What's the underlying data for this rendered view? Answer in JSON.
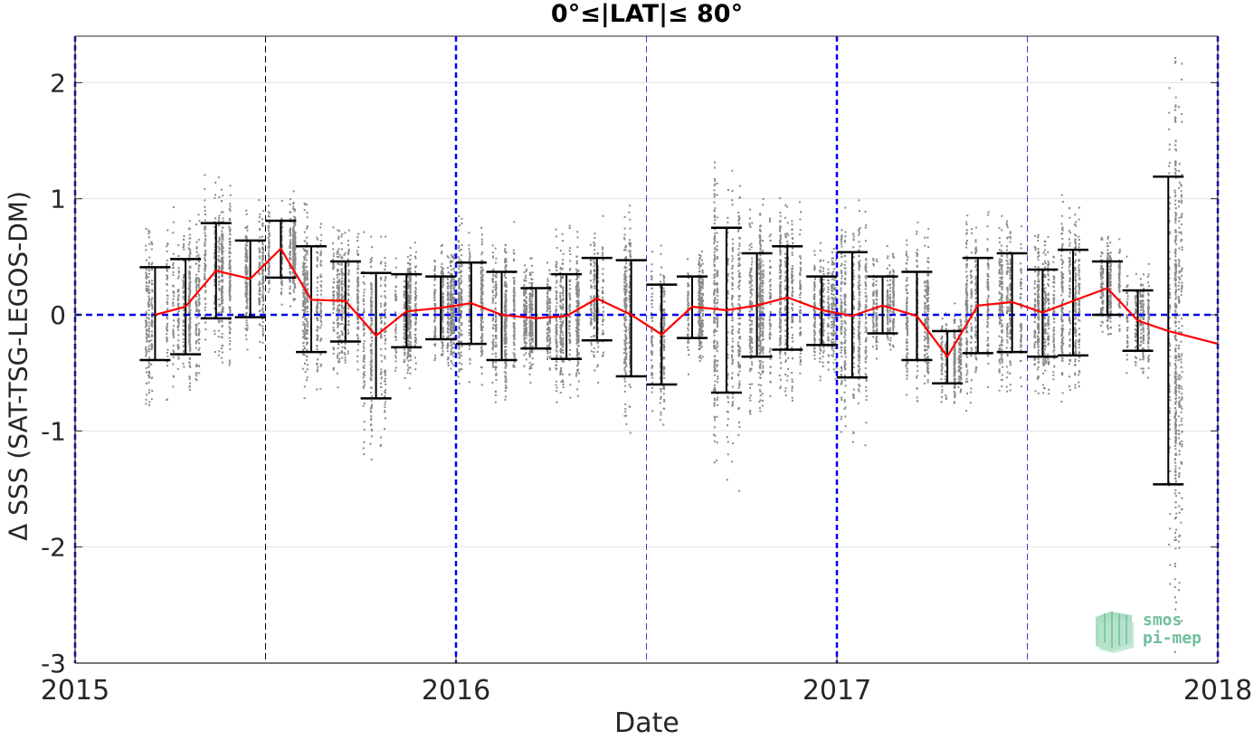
{
  "chart_data": {
    "type": "scatter",
    "title": "0°≤|LAT|≤ 80°",
    "xlabel": "Date",
    "ylabel": "Δ SSS (SAT-TSG-LEGOS-DM)",
    "xlim": [
      2015.0,
      2018.0
    ],
    "ylim": [
      -3.0,
      2.4
    ],
    "xticks": [
      2015,
      2016,
      2017,
      2018
    ],
    "xtick_labels": [
      "2015",
      "2016",
      "2017",
      "2018"
    ],
    "yticks": [
      -3,
      -2,
      -1,
      0,
      1,
      2
    ],
    "ytick_labels": [
      "-3",
      "-2",
      "-1",
      "0",
      "1",
      "2"
    ],
    "grid": true,
    "year_lines": [
      2015.0,
      2016.0,
      2017.0,
      2018.0
    ],
    "midyear_lines": [
      2015.5,
      2016.5,
      2017.5
    ],
    "zero_line": 0,
    "series": [
      {
        "type": "line",
        "color": "#ff0000",
        "x": [
          2015.21,
          2015.29,
          2015.37,
          2015.46,
          2015.54,
          2015.62,
          2015.71,
          2015.79,
          2015.87,
          2015.96,
          2016.04,
          2016.12,
          2016.21,
          2016.29,
          2016.37,
          2016.46,
          2016.54,
          2016.62,
          2016.71,
          2016.79,
          2016.87,
          2016.96,
          2017.04,
          2017.12,
          2017.21,
          2017.29,
          2017.37,
          2017.46,
          2017.54,
          2017.62,
          2017.71,
          2017.79,
          2017.87,
          2018.0
        ],
        "y": [
          0.0,
          0.07,
          0.38,
          0.31,
          0.57,
          0.13,
          0.12,
          -0.18,
          0.03,
          0.06,
          0.1,
          0.0,
          -0.03,
          -0.01,
          0.14,
          0.0,
          -0.17,
          0.07,
          0.04,
          0.08,
          0.15,
          0.04,
          -0.01,
          0.08,
          -0.01,
          -0.36,
          0.08,
          0.11,
          0.02,
          0.12,
          0.23,
          -0.05,
          -0.14,
          -0.25
        ]
      },
      {
        "type": "errorbar",
        "color": "#000000",
        "x": [
          2015.21,
          2015.29,
          2015.37,
          2015.46,
          2015.54,
          2015.62,
          2015.71,
          2015.79,
          2015.87,
          2015.96,
          2016.04,
          2016.12,
          2016.21,
          2016.29,
          2016.37,
          2016.46,
          2016.54,
          2016.62,
          2016.71,
          2016.79,
          2016.87,
          2016.96,
          2017.04,
          2017.12,
          2017.21,
          2017.29,
          2017.37,
          2017.46,
          2017.54,
          2017.62,
          2017.71,
          2017.79,
          2017.87
        ],
        "low": [
          -0.39,
          -0.34,
          -0.03,
          -0.02,
          0.32,
          -0.32,
          -0.23,
          -0.72,
          -0.28,
          -0.21,
          -0.25,
          -0.39,
          -0.29,
          -0.38,
          -0.22,
          -0.53,
          -0.6,
          -0.2,
          -0.67,
          -0.36,
          -0.3,
          -0.26,
          -0.54,
          -0.16,
          -0.39,
          -0.59,
          -0.33,
          -0.32,
          -0.36,
          -0.35,
          0.0,
          -0.31,
          -1.46
        ],
        "high": [
          0.41,
          0.48,
          0.79,
          0.64,
          0.81,
          0.59,
          0.46,
          0.36,
          0.35,
          0.33,
          0.45,
          0.37,
          0.23,
          0.35,
          0.49,
          0.47,
          0.26,
          0.33,
          0.75,
          0.53,
          0.59,
          0.33,
          0.54,
          0.33,
          0.37,
          -0.14,
          0.49,
          0.53,
          0.39,
          0.56,
          0.46,
          0.21,
          1.19
        ]
      }
    ]
  },
  "logo": {
    "line1": "smos",
    "line2": "pi-mep"
  }
}
